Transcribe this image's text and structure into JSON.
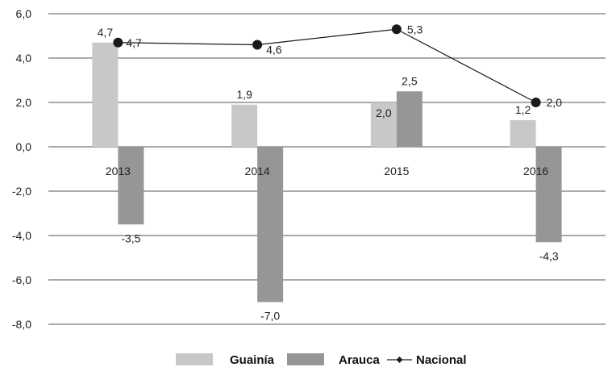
{
  "chart_data": {
    "type": "bar",
    "categories": [
      "2013",
      "2014",
      "2015",
      "2016"
    ],
    "series": [
      {
        "name": "Guainía",
        "kind": "bar",
        "color": "#c8c8c8",
        "values": [
          4.7,
          1.9,
          2.0,
          1.2
        ]
      },
      {
        "name": "Arauca",
        "kind": "bar",
        "color": "#969696",
        "values": [
          -3.5,
          -7.0,
          2.5,
          -4.3
        ]
      },
      {
        "name": "Nacional",
        "kind": "line",
        "color": "#1a1a1a",
        "values": [
          4.7,
          4.6,
          5.3,
          2.0
        ]
      }
    ],
    "data_labels": {
      "Guainía": [
        "4,7",
        "1,9",
        "2,0",
        "1,2"
      ],
      "Arauca": [
        "-3,5",
        "-7,0",
        "2,5",
        "-4,3"
      ],
      "Nacional": [
        "4,7",
        "4,6",
        "5,3",
        "2,0"
      ]
    },
    "y_ticks": [
      "6,0",
      "4,0",
      "2,0",
      "0,0",
      "-2,0",
      "-4,0",
      "-6,0",
      "-8,0"
    ],
    "y_tick_values": [
      6,
      4,
      2,
      0,
      -2,
      -4,
      -6,
      -8
    ],
    "ylim": [
      -8,
      6
    ],
    "grid": true,
    "legend_position": "bottom",
    "title": "",
    "xlabel": "",
    "ylabel": ""
  }
}
